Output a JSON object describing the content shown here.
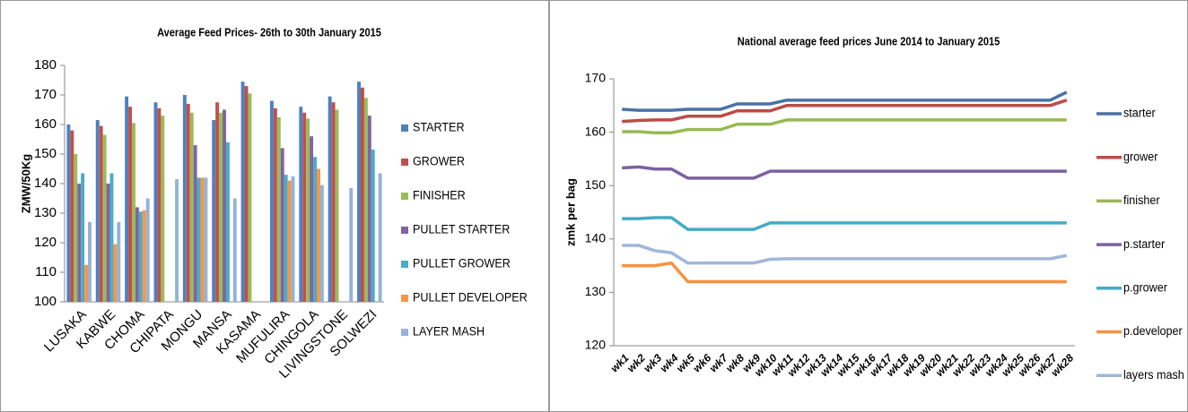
{
  "chart_data": [
    {
      "type": "bar",
      "title": "Average Feed Prices- 26th to 30th January 2015",
      "y_label": "ZMW/50Kg",
      "categories": [
        "LUSAKA",
        "KABWE",
        "CHOMA",
        "CHIPATA",
        "MONGU",
        "MANSA",
        "KASAMA",
        "MUFULIRA",
        "CHINGOLA",
        "LIVINGSTONE",
        "SOLWEZI"
      ],
      "series": [
        {
          "name": "STARTER",
          "color": "#4f81bd",
          "values": [
            160,
            161.5,
            169.5,
            167.5,
            170,
            161.5,
            174.5,
            168,
            166,
            169.5,
            174.5
          ]
        },
        {
          "name": "GROWER",
          "color": "#c0504d",
          "values": [
            158,
            159.5,
            166,
            165.5,
            167,
            167.5,
            173,
            165.5,
            164,
            167.5,
            172.5
          ]
        },
        {
          "name": "FINISHER",
          "color": "#9bbb59",
          "values": [
            150,
            156.5,
            160.5,
            163,
            164,
            164,
            170.5,
            162.5,
            162,
            165,
            169
          ]
        },
        {
          "name": "PULLET STARTER",
          "color": "#8064a2",
          "values": [
            140,
            140,
            132,
            null,
            153,
            165,
            null,
            152,
            156,
            null,
            163
          ]
        },
        {
          "name": "PULLET GROWER",
          "color": "#4bacc6",
          "values": [
            143.5,
            143.5,
            130.5,
            null,
            142,
            154,
            null,
            143,
            149,
            null,
            151.5
          ]
        },
        {
          "name": "PULLET DEVELOPER",
          "color": "#f79646",
          "values": [
            112.5,
            119.5,
            131,
            null,
            142,
            null,
            null,
            141,
            145,
            null,
            null
          ]
        },
        {
          "name": "LAYER MASH",
          "color": "#95b3d7",
          "values": [
            127,
            127,
            135,
            141.5,
            142,
            135,
            null,
            142.5,
            139.5,
            138.5,
            143.5
          ]
        }
      ],
      "ylim": [
        100,
        180
      ],
      "yticks": [
        100,
        110,
        120,
        130,
        140,
        150,
        160,
        170,
        180
      ],
      "grid": false,
      "legend": "right"
    },
    {
      "type": "line",
      "title": "National average feed prices June 2014 to January 2015",
      "y_label": "zmk per bag",
      "categories": [
        "wk1",
        "wk2",
        "wk3",
        "wk4",
        "wk5",
        "wk6",
        "wk7",
        "wk8",
        "wk9",
        "wk10",
        "wk11",
        "wk12",
        "wk13",
        "wk14",
        "wk15",
        "wk16",
        "wk17",
        "wk18",
        "wk19",
        "wk20",
        "wk21",
        "wk22",
        "wk23",
        "wk24",
        "wk25",
        "wk26",
        "wk27",
        "wk28"
      ],
      "series": [
        {
          "name": "starter",
          "color": "#4a72a8",
          "values": [
            164.3,
            164.1,
            164.1,
            164.1,
            164.3,
            164.3,
            164.3,
            165.3,
            165.3,
            165.3,
            166,
            166,
            166,
            166,
            166,
            166,
            166,
            166,
            166,
            166,
            166,
            166,
            166,
            166,
            166,
            166,
            166,
            167.5
          ]
        },
        {
          "name": "grower",
          "color": "#be4b48",
          "values": [
            162,
            162.2,
            162.3,
            162.3,
            163,
            163,
            163,
            164,
            164,
            164,
            165,
            165,
            165,
            165,
            165,
            165,
            165,
            165,
            165,
            165,
            165,
            165,
            165,
            165,
            165,
            165,
            165,
            166
          ]
        },
        {
          "name": "finisher",
          "color": "#98b954",
          "values": [
            160.1,
            160.1,
            159.9,
            159.9,
            160.5,
            160.5,
            160.5,
            161.5,
            161.5,
            161.5,
            162.3,
            162.3,
            162.3,
            162.3,
            162.3,
            162.3,
            162.3,
            162.3,
            162.3,
            162.3,
            162.3,
            162.3,
            162.3,
            162.3,
            162.3,
            162.3,
            162.3,
            162.3
          ]
        },
        {
          "name": "p.starter",
          "color": "#7d60a0",
          "values": [
            153.3,
            153.5,
            153.1,
            153.1,
            151.4,
            151.4,
            151.4,
            151.4,
            151.4,
            152.7,
            152.7,
            152.7,
            152.7,
            152.7,
            152.7,
            152.7,
            152.7,
            152.7,
            152.7,
            152.7,
            152.7,
            152.7,
            152.7,
            152.7,
            152.7,
            152.7,
            152.7,
            152.7
          ]
        },
        {
          "name": "p.grower",
          "color": "#46aac5",
          "values": [
            143.8,
            143.8,
            144,
            144,
            141.8,
            141.8,
            141.8,
            141.8,
            141.8,
            143,
            143,
            143,
            143,
            143,
            143,
            143,
            143,
            143,
            143,
            143,
            143,
            143,
            143,
            143,
            143,
            143,
            143,
            143
          ]
        },
        {
          "name": "p.developer",
          "color": "#f69240",
          "values": [
            135,
            135,
            135,
            135.5,
            132,
            132,
            132,
            132,
            132,
            132,
            132,
            132,
            132,
            132,
            132,
            132,
            132,
            132,
            132,
            132,
            132,
            132,
            132,
            132,
            132,
            132,
            132,
            132
          ]
        },
        {
          "name": "layers mash",
          "color": "#a0b7d9",
          "values": [
            138.8,
            138.8,
            137.8,
            137.4,
            135.5,
            135.5,
            135.5,
            135.5,
            135.5,
            136.2,
            136.3,
            136.3,
            136.3,
            136.3,
            136.3,
            136.3,
            136.3,
            136.3,
            136.3,
            136.3,
            136.3,
            136.3,
            136.3,
            136.3,
            136.3,
            136.3,
            136.3,
            136.9
          ]
        }
      ],
      "ylim": [
        120,
        170
      ],
      "yticks": [
        120,
        130,
        140,
        150,
        160,
        170
      ],
      "grid": false,
      "legend": "right"
    }
  ]
}
